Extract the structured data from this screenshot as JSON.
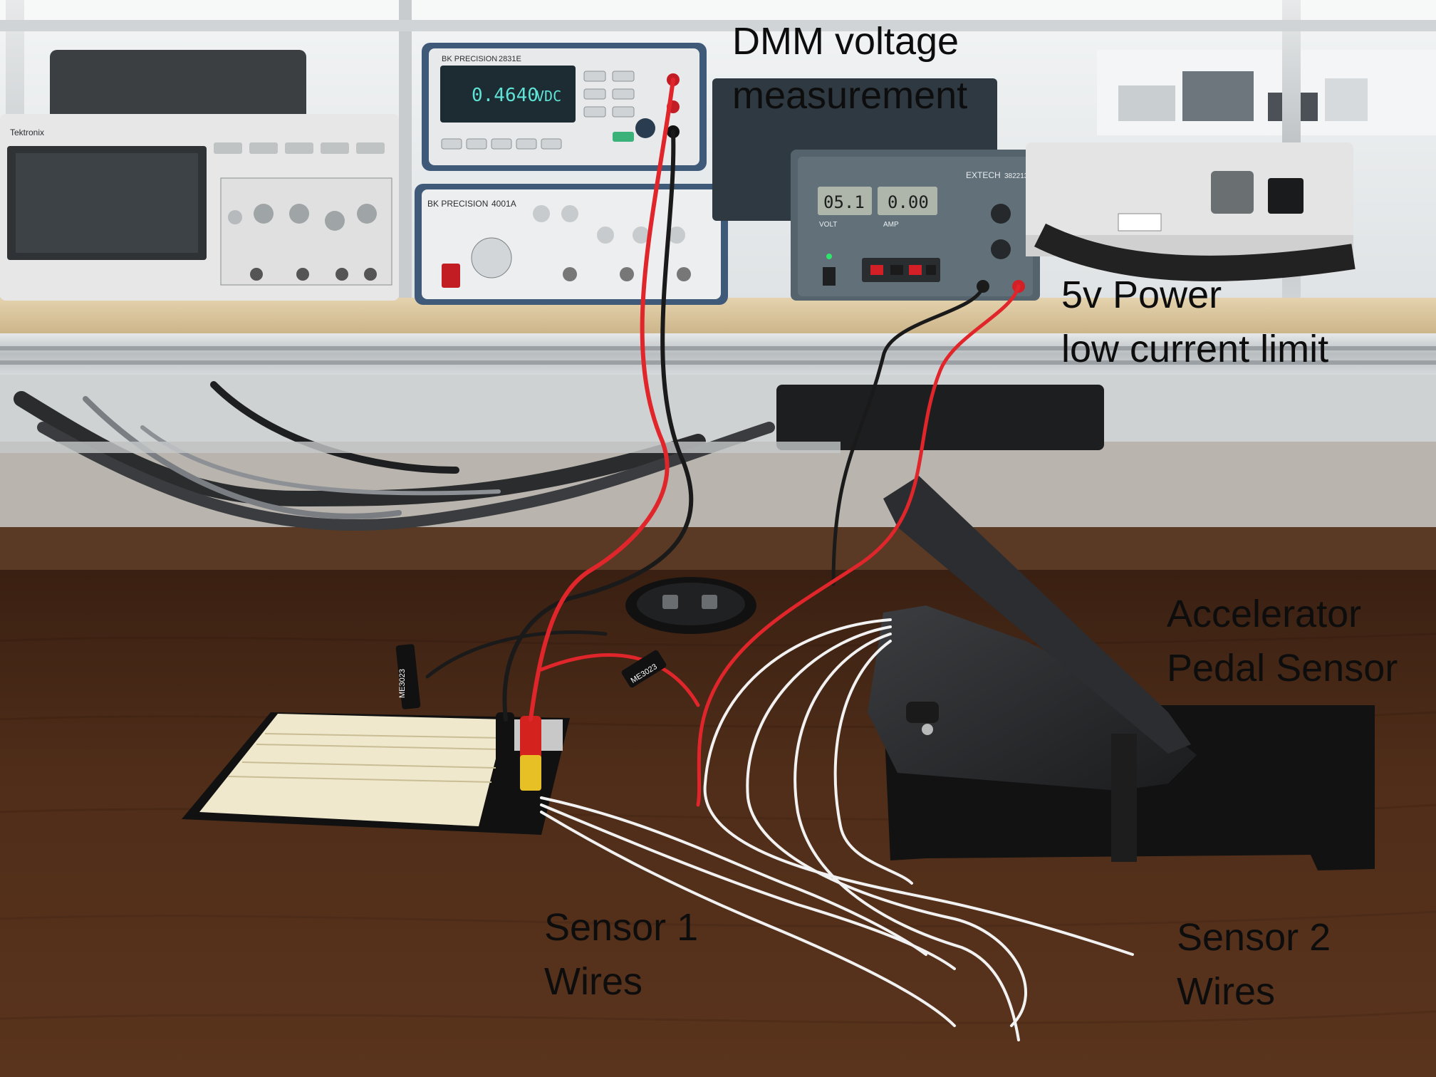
{
  "annotations": {
    "dmm": {
      "line1": "DMM voltage",
      "line2": "measurement"
    },
    "power": {
      "line1": "5v Power",
      "line2": "low current limit"
    },
    "pedal": {
      "line1": "Accelerator",
      "line2": "Pedal Sensor"
    },
    "sensor1": {
      "line1": "Sensor 1",
      "line2": "Wires"
    },
    "sensor2": {
      "line1": "Sensor 2",
      "line2": "Wires"
    }
  },
  "equipment": {
    "dmm_brand": "BK PRECISION",
    "dmm_model": "2831E",
    "dmm_reading": "0.4640",
    "dmm_unit": "VDC",
    "fg_brand": "BK PRECISION",
    "fg_model": "4001A",
    "psu_brand": "EXTECH",
    "psu_model": "382213",
    "psu_voltage": "05.1",
    "psu_current": "0.00",
    "psu_volt_label": "VOLT",
    "psu_amp_label": "AMP",
    "scope_brand": "Tektronix",
    "breadboard_tag": "ME3023",
    "wire_tag": "ME3023"
  },
  "colors": {
    "wall": "#e9ecee",
    "shelf": "#d9c7a3",
    "desk": "#4a2a18",
    "red_wire": "#e0252b",
    "black_wire": "#1a1a1a",
    "white_wire": "#f2f2f2"
  }
}
